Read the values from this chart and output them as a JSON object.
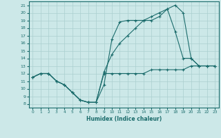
{
  "xlabel": "Humidex (Indice chaleur)",
  "bg_color": "#cce8e8",
  "line_color": "#1a6b6b",
  "grid_color": "#aacfcf",
  "xlim": [
    -0.5,
    23.5
  ],
  "ylim": [
    7.5,
    21.5
  ],
  "xticks": [
    0,
    1,
    2,
    3,
    4,
    5,
    6,
    7,
    8,
    9,
    10,
    11,
    12,
    13,
    14,
    15,
    16,
    17,
    18,
    19,
    20,
    21,
    22,
    23
  ],
  "yticks": [
    8,
    9,
    10,
    11,
    12,
    13,
    14,
    15,
    16,
    17,
    18,
    19,
    20,
    21
  ],
  "line1_x": [
    0,
    1,
    2,
    3,
    4,
    5,
    6,
    7,
    8,
    9,
    10,
    11,
    12,
    13,
    14,
    15,
    16,
    17,
    18,
    19,
    20,
    21,
    22,
    23
  ],
  "line1_y": [
    11.5,
    12,
    12,
    11,
    10.5,
    9.5,
    8.5,
    8.2,
    8.2,
    12.0,
    12,
    12,
    12,
    12,
    12,
    12.5,
    12.5,
    12.5,
    12.5,
    12.5,
    13,
    13,
    13,
    13
  ],
  "line2_x": [
    0,
    1,
    2,
    3,
    4,
    5,
    6,
    7,
    8,
    9,
    10,
    11,
    12,
    13,
    14,
    15,
    16,
    17,
    18,
    19,
    20,
    21,
    22,
    23
  ],
  "line2_y": [
    11.5,
    12,
    12,
    11,
    10.5,
    9.5,
    8.5,
    8.2,
    8.2,
    10.5,
    16.5,
    18.8,
    19,
    19,
    19,
    19,
    19.5,
    20.5,
    21,
    20,
    14,
    13,
    13,
    13
  ],
  "line3_x": [
    0,
    1,
    2,
    3,
    4,
    5,
    6,
    7,
    8,
    9,
    10,
    11,
    12,
    13,
    14,
    15,
    16,
    17,
    18,
    19,
    20,
    21,
    22,
    23
  ],
  "line3_y": [
    11.5,
    12,
    12,
    11,
    10.5,
    9.5,
    8.5,
    8.2,
    8.2,
    12.2,
    14.5,
    16,
    17,
    18,
    19,
    19.5,
    20,
    20.5,
    17.5,
    14,
    14,
    13,
    13,
    13
  ]
}
